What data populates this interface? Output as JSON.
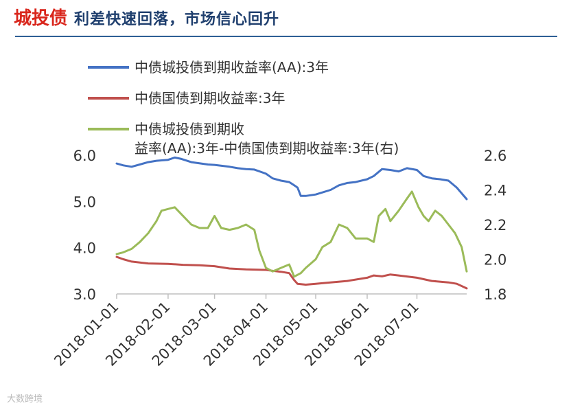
{
  "header": {
    "tag": "城投债",
    "title": "利差快速回落，市场信心回升"
  },
  "watermark": {
    "text": "大数跨境"
  },
  "chart_data": {
    "type": "line",
    "title": "",
    "legend_placement": "top",
    "x_ticks": [
      "2018-01-01",
      "2018-02-01",
      "2018-03-01",
      "2018-04-01",
      "2018-05-01",
      "2018-06-01",
      "2018-07-01"
    ],
    "x_range": [
      "2018-01-01",
      "2018-07-31"
    ],
    "y_left": {
      "range": [
        3.0,
        6.0
      ],
      "ticks": [
        "3.0",
        "4.0",
        "5.0",
        "6.0"
      ]
    },
    "y_right": {
      "range": [
        1.8,
        2.6
      ],
      "ticks": [
        "1.8",
        "2.0",
        "2.2",
        "2.4",
        "2.6"
      ]
    },
    "grid": false,
    "series": [
      {
        "name": "中债城投债到期收益率(AA):3年",
        "axis": "left",
        "color": "#4472c4",
        "points": [
          [
            "2018-01-01",
            5.82
          ],
          [
            "2018-01-05",
            5.78
          ],
          [
            "2018-01-10",
            5.75
          ],
          [
            "2018-01-15",
            5.8
          ],
          [
            "2018-01-20",
            5.85
          ],
          [
            "2018-01-25",
            5.88
          ],
          [
            "2018-02-01",
            5.9
          ],
          [
            "2018-02-05",
            5.95
          ],
          [
            "2018-02-09",
            5.92
          ],
          [
            "2018-02-15",
            5.85
          ],
          [
            "2018-02-25",
            5.8
          ],
          [
            "2018-03-01",
            5.79
          ],
          [
            "2018-03-10",
            5.75
          ],
          [
            "2018-03-15",
            5.72
          ],
          [
            "2018-03-20",
            5.7
          ],
          [
            "2018-03-25",
            5.69
          ],
          [
            "2018-04-01",
            5.6
          ],
          [
            "2018-04-05",
            5.5
          ],
          [
            "2018-04-10",
            5.45
          ],
          [
            "2018-04-15",
            5.42
          ],
          [
            "2018-04-18",
            5.35
          ],
          [
            "2018-04-20",
            5.3
          ],
          [
            "2018-04-22",
            5.12
          ],
          [
            "2018-04-25",
            5.12
          ],
          [
            "2018-05-01",
            5.15
          ],
          [
            "2018-05-10",
            5.25
          ],
          [
            "2018-05-15",
            5.35
          ],
          [
            "2018-05-20",
            5.4
          ],
          [
            "2018-05-25",
            5.42
          ],
          [
            "2018-06-01",
            5.48
          ],
          [
            "2018-06-05",
            5.55
          ],
          [
            "2018-06-10",
            5.7
          ],
          [
            "2018-06-15",
            5.68
          ],
          [
            "2018-06-20",
            5.65
          ],
          [
            "2018-06-25",
            5.72
          ],
          [
            "2018-07-01",
            5.68
          ],
          [
            "2018-07-05",
            5.55
          ],
          [
            "2018-07-10",
            5.5
          ],
          [
            "2018-07-15",
            5.48
          ],
          [
            "2018-07-20",
            5.45
          ],
          [
            "2018-07-25",
            5.3
          ],
          [
            "2018-07-31",
            5.05
          ]
        ]
      },
      {
        "name": "中债国债到期收益率:3年",
        "axis": "left",
        "color": "#c0504d",
        "points": [
          [
            "2018-01-01",
            3.8
          ],
          [
            "2018-01-05",
            3.75
          ],
          [
            "2018-01-10",
            3.7
          ],
          [
            "2018-01-15",
            3.68
          ],
          [
            "2018-01-20",
            3.66
          ],
          [
            "2018-02-01",
            3.65
          ],
          [
            "2018-02-10",
            3.63
          ],
          [
            "2018-02-20",
            3.62
          ],
          [
            "2018-03-01",
            3.6
          ],
          [
            "2018-03-10",
            3.55
          ],
          [
            "2018-03-20",
            3.53
          ],
          [
            "2018-04-01",
            3.52
          ],
          [
            "2018-04-05",
            3.5
          ],
          [
            "2018-04-10",
            3.48
          ],
          [
            "2018-04-15",
            3.45
          ],
          [
            "2018-04-18",
            3.3
          ],
          [
            "2018-04-20",
            3.22
          ],
          [
            "2018-04-25",
            3.2
          ],
          [
            "2018-05-01",
            3.22
          ],
          [
            "2018-05-10",
            3.25
          ],
          [
            "2018-05-20",
            3.28
          ],
          [
            "2018-06-01",
            3.35
          ],
          [
            "2018-06-05",
            3.4
          ],
          [
            "2018-06-10",
            3.38
          ],
          [
            "2018-06-15",
            3.42
          ],
          [
            "2018-06-20",
            3.4
          ],
          [
            "2018-07-01",
            3.35
          ],
          [
            "2018-07-10",
            3.28
          ],
          [
            "2018-07-20",
            3.25
          ],
          [
            "2018-07-25",
            3.22
          ],
          [
            "2018-07-31",
            3.12
          ]
        ]
      },
      {
        "name": "中债城投债到期收益率(AA):3年-中债国债到期收益率:3年(右)",
        "axis": "right",
        "color": "#9bbb59",
        "points": [
          [
            "2018-01-01",
            2.03
          ],
          [
            "2018-01-05",
            2.04
          ],
          [
            "2018-01-10",
            2.06
          ],
          [
            "2018-01-15",
            2.1
          ],
          [
            "2018-01-20",
            2.15
          ],
          [
            "2018-01-25",
            2.22
          ],
          [
            "2018-01-28",
            2.28
          ],
          [
            "2018-02-01",
            2.29
          ],
          [
            "2018-02-05",
            2.3
          ],
          [
            "2018-02-09",
            2.26
          ],
          [
            "2018-02-15",
            2.2
          ],
          [
            "2018-02-20",
            2.18
          ],
          [
            "2018-02-25",
            2.18
          ],
          [
            "2018-03-01",
            2.25
          ],
          [
            "2018-03-05",
            2.18
          ],
          [
            "2018-03-10",
            2.17
          ],
          [
            "2018-03-15",
            2.18
          ],
          [
            "2018-03-20",
            2.2
          ],
          [
            "2018-03-25",
            2.17
          ],
          [
            "2018-03-28",
            2.05
          ],
          [
            "2018-04-01",
            1.95
          ],
          [
            "2018-04-05",
            1.93
          ],
          [
            "2018-04-10",
            1.95
          ],
          [
            "2018-04-15",
            1.97
          ],
          [
            "2018-04-18",
            1.9
          ],
          [
            "2018-04-22",
            1.92
          ],
          [
            "2018-04-25",
            1.95
          ],
          [
            "2018-05-01",
            2.0
          ],
          [
            "2018-05-05",
            2.07
          ],
          [
            "2018-05-10",
            2.1
          ],
          [
            "2018-05-15",
            2.2
          ],
          [
            "2018-05-20",
            2.18
          ],
          [
            "2018-05-25",
            2.12
          ],
          [
            "2018-06-01",
            2.12
          ],
          [
            "2018-06-05",
            2.1
          ],
          [
            "2018-06-08",
            2.25
          ],
          [
            "2018-06-12",
            2.29
          ],
          [
            "2018-06-15",
            2.22
          ],
          [
            "2018-06-20",
            2.28
          ],
          [
            "2018-06-25",
            2.35
          ],
          [
            "2018-06-28",
            2.39
          ],
          [
            "2018-07-02",
            2.3
          ],
          [
            "2018-07-05",
            2.25
          ],
          [
            "2018-07-08",
            2.22
          ],
          [
            "2018-07-12",
            2.28
          ],
          [
            "2018-07-16",
            2.25
          ],
          [
            "2018-07-20",
            2.2
          ],
          [
            "2018-07-24",
            2.15
          ],
          [
            "2018-07-28",
            2.07
          ],
          [
            "2018-07-31",
            1.93
          ]
        ]
      }
    ]
  }
}
